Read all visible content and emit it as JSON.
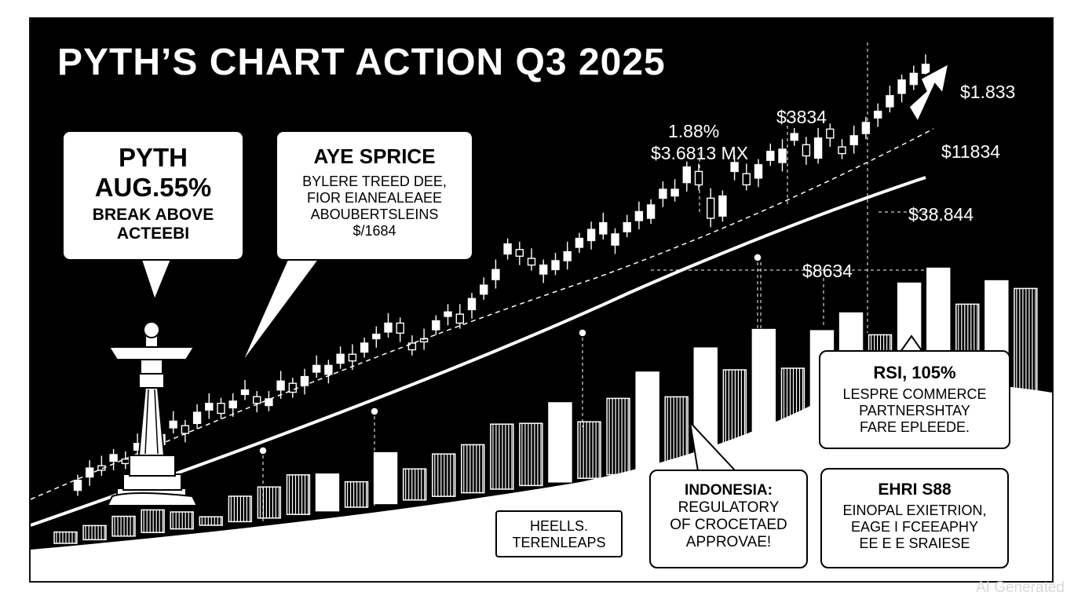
{
  "title": "PYTH’S CHART ACTION Q3 2025",
  "watermark": "AI Generated",
  "colors": {
    "background": "#000000",
    "foreground": "#ffffff"
  },
  "callouts": {
    "pyth": [
      "PYTH",
      "AUG.55%",
      "BREAK ABOVE",
      "ACTEEBI"
    ],
    "price": [
      "AYE SPRICE",
      "BYLERE TREED DEE,",
      "FIOR EIANEALEAEE",
      "ABOUBERTSLEINS",
      "$/1684"
    ],
    "rsi": [
      "RSI, 105%",
      "LESPRE COMMERCE",
      "PARTNERSHTAY",
      "FARE EPLEEDE."
    ],
    "indonesia": [
      "INDONESIA:",
      "REGULATORY",
      "OF CROCETAED",
      "APPROVAE!"
    ],
    "ehri": [
      "EHRI S88",
      "EINOPAL EXIETRION,",
      "EAGE I FCEEAPHY",
      "EE E E SRAIESE"
    ],
    "heels": [
      "HEELLS.",
      "TERENLEAPS"
    ]
  },
  "price_labels": [
    "1.88%",
    "$3.6813 MX",
    "$3834",
    "$1.833",
    "$11834",
    "$38.844",
    "$8634"
  ],
  "chart_data": {
    "type": "candlestick",
    "title": "PYTH’S CHART ACTION Q3 2025",
    "candles": [
      {
        "o": 56,
        "c": 65
      },
      {
        "o": 68,
        "c": 76
      },
      {
        "o": 78,
        "c": 74
      },
      {
        "o": 82,
        "c": 88
      },
      {
        "o": 84,
        "c": 80
      },
      {
        "o": 92,
        "c": 98
      },
      {
        "o": 100,
        "c": 96
      },
      {
        "o": 97,
        "c": 106
      },
      {
        "o": 112,
        "c": 118
      },
      {
        "o": 114,
        "c": 107
      },
      {
        "o": 116,
        "c": 126
      },
      {
        "o": 128,
        "c": 134
      },
      {
        "o": 134,
        "c": 125
      },
      {
        "o": 130,
        "c": 136
      },
      {
        "o": 142,
        "c": 146
      },
      {
        "o": 140,
        "c": 134
      },
      {
        "o": 132,
        "c": 138
      },
      {
        "o": 146,
        "c": 154
      },
      {
        "o": 152,
        "c": 144
      },
      {
        "o": 150,
        "c": 158
      },
      {
        "o": 162,
        "c": 168
      },
      {
        "o": 160,
        "c": 168
      },
      {
        "o": 170,
        "c": 178
      },
      {
        "o": 178,
        "c": 172
      },
      {
        "o": 180,
        "c": 188
      },
      {
        "o": 192,
        "c": 196
      },
      {
        "o": 198,
        "c": 206
      },
      {
        "o": 206,
        "c": 197
      },
      {
        "o": 188,
        "c": 182
      },
      {
        "o": 192,
        "c": 190
      },
      {
        "o": 200,
        "c": 208
      },
      {
        "o": 212,
        "c": 216
      },
      {
        "o": 214,
        "c": 206
      },
      {
        "o": 218,
        "c": 228
      },
      {
        "o": 232,
        "c": 240
      },
      {
        "o": 245,
        "c": 254
      },
      {
        "o": 268,
        "c": 277
      },
      {
        "o": 272,
        "c": 266
      },
      {
        "o": 264,
        "c": 258
      },
      {
        "o": 250,
        "c": 258
      },
      {
        "o": 254,
        "c": 262
      },
      {
        "o": 262,
        "c": 270
      },
      {
        "o": 274,
        "c": 282
      },
      {
        "o": 280,
        "c": 290
      },
      {
        "o": 286,
        "c": 296
      },
      {
        "o": 276,
        "c": 286
      },
      {
        "o": 288,
        "c": 296
      },
      {
        "o": 298,
        "c": 306
      },
      {
        "o": 300,
        "c": 312
      },
      {
        "o": 318,
        "c": 326
      },
      {
        "o": 320,
        "c": 326
      },
      {
        "o": 332,
        "c": 346
      },
      {
        "o": 342,
        "c": 330
      },
      {
        "o": 318,
        "c": 300
      },
      {
        "o": 302,
        "c": 320
      },
      {
        "o": 342,
        "c": 350
      },
      {
        "o": 340,
        "c": 330
      },
      {
        "o": 336,
        "c": 348
      },
      {
        "o": 352,
        "c": 360
      },
      {
        "o": 350,
        "c": 362
      },
      {
        "o": 370,
        "c": 376
      },
      {
        "o": 366,
        "c": 356
      },
      {
        "o": 354,
        "c": 372
      },
      {
        "o": 380,
        "c": 372
      },
      {
        "o": 364,
        "c": 358
      },
      {
        "o": 366,
        "c": 374
      },
      {
        "o": 376,
        "c": 386
      },
      {
        "o": 390,
        "c": 396
      },
      {
        "o": 400,
        "c": 410
      },
      {
        "o": 412,
        "c": 424
      },
      {
        "o": 420,
        "c": 430
      },
      {
        "o": 430,
        "c": 438
      }
    ],
    "trend_line": [
      110,
      200,
      310
    ],
    "trend_points": [
      {
        "x": 0.28,
        "y": 116
      },
      {
        "x": 0.41,
        "y": 158
      },
      {
        "x": 0.65,
        "y": 250
      },
      {
        "x": 0.86,
        "y": 300
      }
    ],
    "volume": [
      {
        "v": 8,
        "style": "striped"
      },
      {
        "v": 10,
        "style": "striped"
      },
      {
        "v": 14,
        "style": "striped"
      },
      {
        "v": 16,
        "style": "striped"
      },
      {
        "v": 12,
        "style": "striped"
      },
      {
        "v": 6,
        "style": "striped"
      },
      {
        "v": 18,
        "style": "striped"
      },
      {
        "v": 22,
        "style": "striped"
      },
      {
        "v": 28,
        "style": "striped"
      },
      {
        "v": 26,
        "style": "solid"
      },
      {
        "v": 18,
        "style": "striped"
      },
      {
        "v": 36,
        "style": "solid"
      },
      {
        "v": 22,
        "style": "striped"
      },
      {
        "v": 30,
        "style": "striped"
      },
      {
        "v": 34,
        "style": "striped"
      },
      {
        "v": 46,
        "style": "striped"
      },
      {
        "v": 44,
        "style": "striped"
      },
      {
        "v": 56,
        "style": "solid"
      },
      {
        "v": 40,
        "style": "striped"
      },
      {
        "v": 54,
        "style": "striped"
      },
      {
        "v": 70,
        "style": "solid"
      },
      {
        "v": 50,
        "style": "striped"
      },
      {
        "v": 82,
        "style": "solid"
      },
      {
        "v": 64,
        "style": "striped"
      },
      {
        "v": 90,
        "style": "solid"
      },
      {
        "v": 60,
        "style": "striped"
      },
      {
        "v": 84,
        "style": "solid"
      },
      {
        "v": 94,
        "style": "solid"
      },
      {
        "v": 76,
        "style": "striped"
      },
      {
        "v": 110,
        "style": "solid"
      },
      {
        "v": 118,
        "style": "solid"
      },
      {
        "v": 90,
        "style": "striped"
      },
      {
        "v": 104,
        "style": "solid"
      },
      {
        "v": 96,
        "style": "striped"
      }
    ]
  }
}
